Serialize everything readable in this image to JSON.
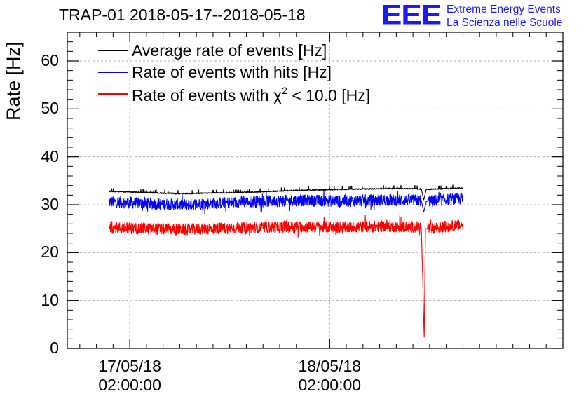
{
  "chart_data": {
    "type": "line",
    "title": "TRAP-01 2018-05-17--2018-05-18",
    "ylabel": "Rate [Hz]",
    "xlabel": "",
    "ylim": [
      0,
      66
    ],
    "yticks": [
      "0",
      "10",
      "20",
      "30",
      "40",
      "50",
      "60"
    ],
    "xlim_hours_from_20180516_22": [
      -3.5,
      56
    ],
    "xticks": [
      {
        "line1": "17/05/18",
        "line2": "02:00:00",
        "hour": 4
      },
      {
        "line1": "18/05/18",
        "line2": "02:00:00",
        "hour": 28
      }
    ],
    "grid": true,
    "legend_position": "top-left",
    "series": [
      {
        "name": "Average rate of events [Hz]",
        "color": "#000000",
        "x_hours": [
          1.5,
          10,
          18,
          24,
          30,
          35,
          39,
          39.3,
          39.6,
          44
        ],
        "values": [
          32.8,
          32.3,
          32.6,
          33.0,
          33.2,
          33.4,
          33.3,
          31.0,
          33.2,
          33.5
        ]
      },
      {
        "name": "Rate of events with hits [Hz]",
        "color": "#0000ff",
        "x_hours": [
          1.5,
          10,
          18,
          24,
          30,
          35,
          39,
          39.3,
          39.6,
          44
        ],
        "values": [
          30.6,
          30.0,
          30.6,
          30.9,
          30.8,
          31.0,
          30.9,
          28.5,
          30.7,
          31.3
        ]
      },
      {
        "name": "Rate of events with χ2 < 10.0 [Hz]",
        "color": "#ff0000",
        "x_hours": [
          1.5,
          10,
          18,
          24,
          30,
          35,
          39,
          39.2,
          39.35,
          39.5,
          44
        ],
        "values": [
          25.2,
          24.8,
          25.2,
          25.4,
          25.3,
          25.5,
          25.3,
          13.0,
          1.5,
          25.0,
          25.7
        ]
      }
    ]
  },
  "legend": {
    "avg_label": "Average rate of events [Hz]",
    "hits_label": "Rate of events with hits [Hz]",
    "chi_prefix": "Rate of events with χ",
    "chi_sup": "2",
    "chi_suffix": " < 10.0 [Hz]"
  },
  "logo": {
    "mark": "EEE",
    "line1": "Extreme Energy Events",
    "line2": "La Scienza nelle Scuole"
  }
}
